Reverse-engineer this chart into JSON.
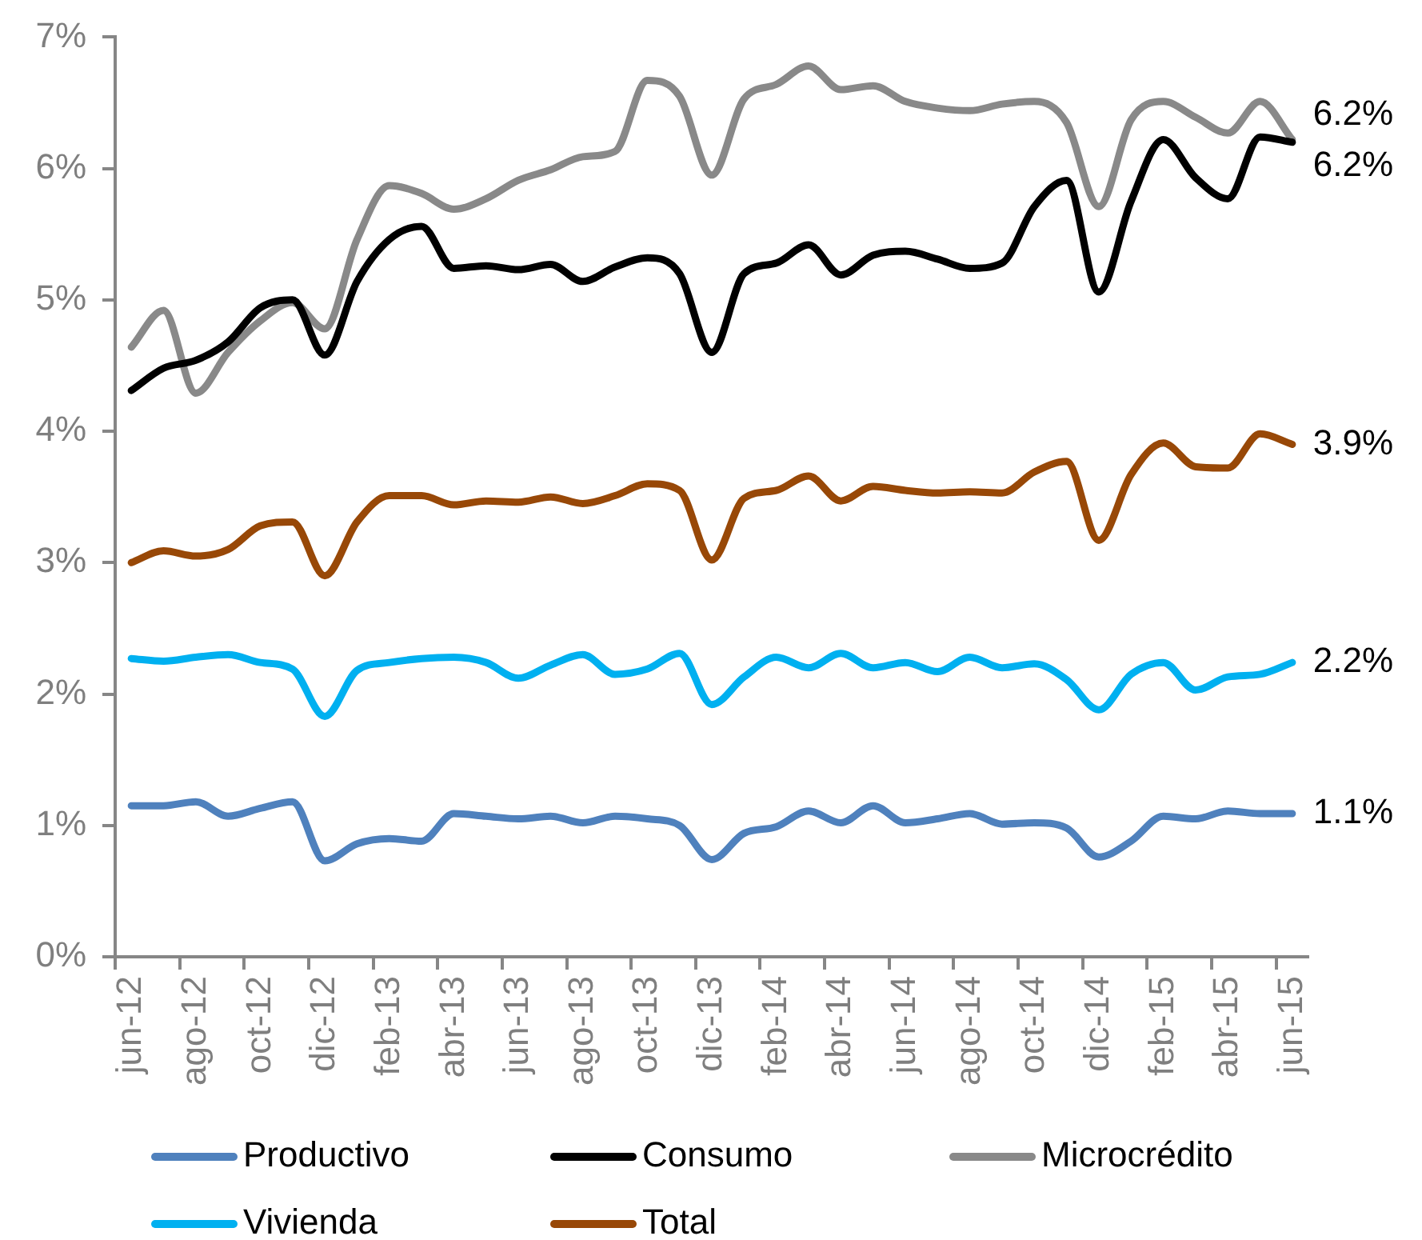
{
  "chart_data": {
    "type": "line",
    "categories": [
      "jun-12",
      null,
      "ago-12",
      null,
      "oct-12",
      null,
      "dic-12",
      null,
      "feb-13",
      null,
      "abr-13",
      null,
      "jun-13",
      null,
      "ago-13",
      null,
      "oct-13",
      null,
      "dic-13",
      null,
      "feb-14",
      null,
      "abr-14",
      null,
      "jun-14",
      null,
      "ago-14",
      null,
      "oct-14",
      null,
      "dic-14",
      null,
      "feb-15",
      null,
      "abr-15",
      null,
      "jun-15"
    ],
    "ylim": [
      0,
      7
    ],
    "yticks": [
      {
        "value": 0,
        "label": "0%"
      },
      {
        "value": 1,
        "label": "1%"
      },
      {
        "value": 2,
        "label": "2%"
      },
      {
        "value": 3,
        "label": "3%"
      },
      {
        "value": 4,
        "label": "4%"
      },
      {
        "value": 5,
        "label": "5%"
      },
      {
        "value": 6,
        "label": "6%"
      },
      {
        "value": 7,
        "label": "7%"
      }
    ],
    "grid": false,
    "legend": "bottom",
    "marker": "none",
    "line_style": "solid",
    "series": [
      {
        "name": "Productivo",
        "color": "#4f81bd",
        "values": [
          1.15,
          1.15,
          1.18,
          1.07,
          1.13,
          1.18,
          0.73,
          0.86,
          0.9,
          0.88,
          1.09,
          1.07,
          1.05,
          1.07,
          1.02,
          1.07,
          1.05,
          1.0,
          0.74,
          0.94,
          0.99,
          1.11,
          1.02,
          1.15,
          1.02,
          1.05,
          1.09,
          1.01,
          1.02,
          0.98,
          0.76,
          0.88,
          1.07,
          1.05,
          1.11,
          1.09,
          1.09
        ],
        "value_labels": [
          null,
          null,
          null,
          null,
          null,
          null,
          null,
          null,
          null,
          null,
          null,
          null,
          null,
          null,
          null,
          null,
          null,
          null,
          null,
          null,
          null,
          null,
          null,
          null,
          null,
          null,
          null,
          null,
          null,
          null,
          null,
          null,
          null,
          null,
          null,
          null,
          "1.1%"
        ]
      },
      {
        "name": "Consumo",
        "color": "#000000",
        "values": [
          4.31,
          4.48,
          4.54,
          4.68,
          4.94,
          5.0,
          4.58,
          5.14,
          5.46,
          5.56,
          5.24,
          5.26,
          5.23,
          5.27,
          5.14,
          5.25,
          5.32,
          5.2,
          4.6,
          5.2,
          5.28,
          5.42,
          5.19,
          5.34,
          5.37,
          5.31,
          5.24,
          5.28,
          5.71,
          5.91,
          5.06,
          5.75,
          6.22,
          5.93,
          5.77,
          6.24,
          6.2
        ],
        "value_labels": [
          null,
          null,
          null,
          null,
          null,
          null,
          null,
          null,
          null,
          null,
          null,
          null,
          null,
          null,
          null,
          null,
          null,
          null,
          null,
          null,
          null,
          null,
          null,
          null,
          null,
          null,
          null,
          null,
          null,
          null,
          null,
          null,
          null,
          null,
          null,
          null,
          "6.2%"
        ]
      },
      {
        "name": "Microcrédito",
        "color": "#898989",
        "values": [
          4.64,
          4.92,
          4.29,
          4.6,
          4.84,
          4.98,
          4.78,
          5.46,
          5.87,
          5.81,
          5.69,
          5.77,
          5.91,
          5.99,
          6.09,
          6.13,
          6.67,
          6.55,
          5.95,
          6.53,
          6.64,
          6.78,
          6.6,
          6.63,
          6.51,
          6.46,
          6.44,
          6.49,
          6.51,
          6.35,
          5.71,
          6.37,
          6.51,
          6.39,
          6.27,
          6.51,
          6.22
        ],
        "value_labels": [
          null,
          null,
          null,
          null,
          null,
          null,
          null,
          null,
          null,
          null,
          null,
          null,
          null,
          null,
          null,
          null,
          null,
          null,
          null,
          null,
          null,
          null,
          null,
          null,
          null,
          null,
          null,
          null,
          null,
          null,
          null,
          null,
          null,
          null,
          null,
          null,
          "6.2%"
        ]
      },
      {
        "name": "Vivienda",
        "color": "#00b0f0",
        "values": [
          2.27,
          2.25,
          2.28,
          2.3,
          2.24,
          2.19,
          1.83,
          2.18,
          2.24,
          2.27,
          2.28,
          2.24,
          2.12,
          2.22,
          2.3,
          2.15,
          2.19,
          2.31,
          1.92,
          2.13,
          2.28,
          2.2,
          2.31,
          2.2,
          2.24,
          2.17,
          2.28,
          2.2,
          2.23,
          2.11,
          1.88,
          2.15,
          2.24,
          2.03,
          2.13,
          2.15,
          2.24
        ],
        "value_labels": [
          null,
          null,
          null,
          null,
          null,
          null,
          null,
          null,
          null,
          null,
          null,
          null,
          null,
          null,
          null,
          null,
          null,
          null,
          null,
          null,
          null,
          null,
          null,
          null,
          null,
          null,
          null,
          null,
          null,
          null,
          null,
          null,
          null,
          null,
          null,
          null,
          "2.2%"
        ]
      },
      {
        "name": "Total",
        "color": "#984807",
        "values": [
          3.0,
          3.09,
          3.05,
          3.1,
          3.28,
          3.31,
          2.9,
          3.31,
          3.51,
          3.51,
          3.44,
          3.47,
          3.46,
          3.5,
          3.45,
          3.51,
          3.6,
          3.55,
          3.02,
          3.49,
          3.55,
          3.66,
          3.47,
          3.58,
          3.55,
          3.53,
          3.54,
          3.53,
          3.69,
          3.77,
          3.17,
          3.67,
          3.91,
          3.73,
          3.72,
          3.98,
          3.9
        ],
        "value_labels": [
          null,
          null,
          null,
          null,
          null,
          null,
          null,
          null,
          null,
          null,
          null,
          null,
          null,
          null,
          null,
          null,
          null,
          null,
          null,
          null,
          null,
          null,
          null,
          null,
          null,
          null,
          null,
          null,
          null,
          null,
          null,
          null,
          null,
          null,
          null,
          null,
          "3.9%"
        ]
      }
    ]
  }
}
